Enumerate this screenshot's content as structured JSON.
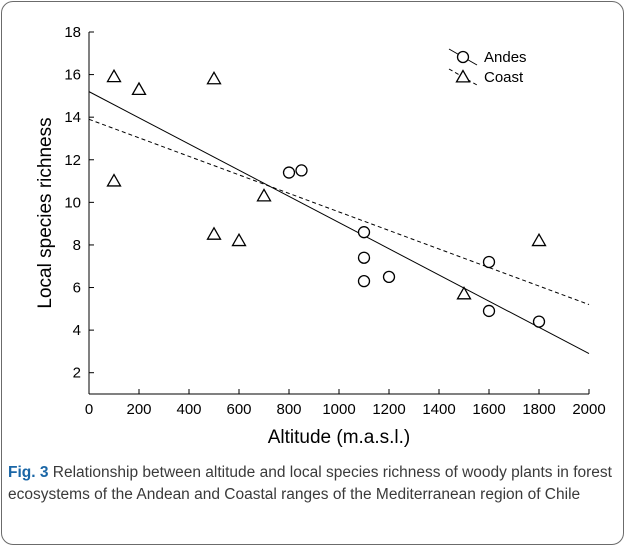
{
  "chart_data": {
    "type": "scatter",
    "xlabel": "Altitude (m.a.s.l.)",
    "ylabel": "Local species richness",
    "xlim": [
      0,
      2000
    ],
    "ylim": [
      1,
      18
    ],
    "xticks": [
      0,
      200,
      400,
      600,
      800,
      1000,
      1200,
      1400,
      1600,
      1800,
      2000
    ],
    "yticks": [
      2,
      4,
      6,
      8,
      10,
      12,
      14,
      16,
      18
    ],
    "grid": false,
    "legend_position": "top-right",
    "series": [
      {
        "name": "Andes",
        "marker": "circle",
        "line": "solid",
        "points": [
          {
            "x": 800,
            "y": 11.4
          },
          {
            "x": 850,
            "y": 11.5
          },
          {
            "x": 1100,
            "y": 8.6
          },
          {
            "x": 1100,
            "y": 7.4
          },
          {
            "x": 1100,
            "y": 6.3
          },
          {
            "x": 1200,
            "y": 6.5
          },
          {
            "x": 1600,
            "y": 7.2
          },
          {
            "x": 1600,
            "y": 4.9
          },
          {
            "x": 1800,
            "y": 4.4
          }
        ],
        "fit": {
          "x": [
            0,
            2000
          ],
          "y": [
            15.2,
            2.9
          ]
        }
      },
      {
        "name": "Coast",
        "marker": "triangle",
        "line": "dashed",
        "points": [
          {
            "x": 100,
            "y": 15.9
          },
          {
            "x": 100,
            "y": 11.0
          },
          {
            "x": 200,
            "y": 15.3
          },
          {
            "x": 500,
            "y": 15.8
          },
          {
            "x": 500,
            "y": 8.5
          },
          {
            "x": 600,
            "y": 8.2
          },
          {
            "x": 700,
            "y": 10.3
          },
          {
            "x": 1500,
            "y": 5.7
          },
          {
            "x": 1800,
            "y": 8.2
          }
        ],
        "fit": {
          "x": [
            0,
            2000
          ],
          "y": [
            13.9,
            5.2
          ]
        }
      }
    ]
  },
  "caption": {
    "label": "Fig. 3",
    "text": " Relationship between altitude and local species richness of woody plants in forest ecosystems of the Andean and Coastal ranges of the Mediterranean region of Chile"
  }
}
